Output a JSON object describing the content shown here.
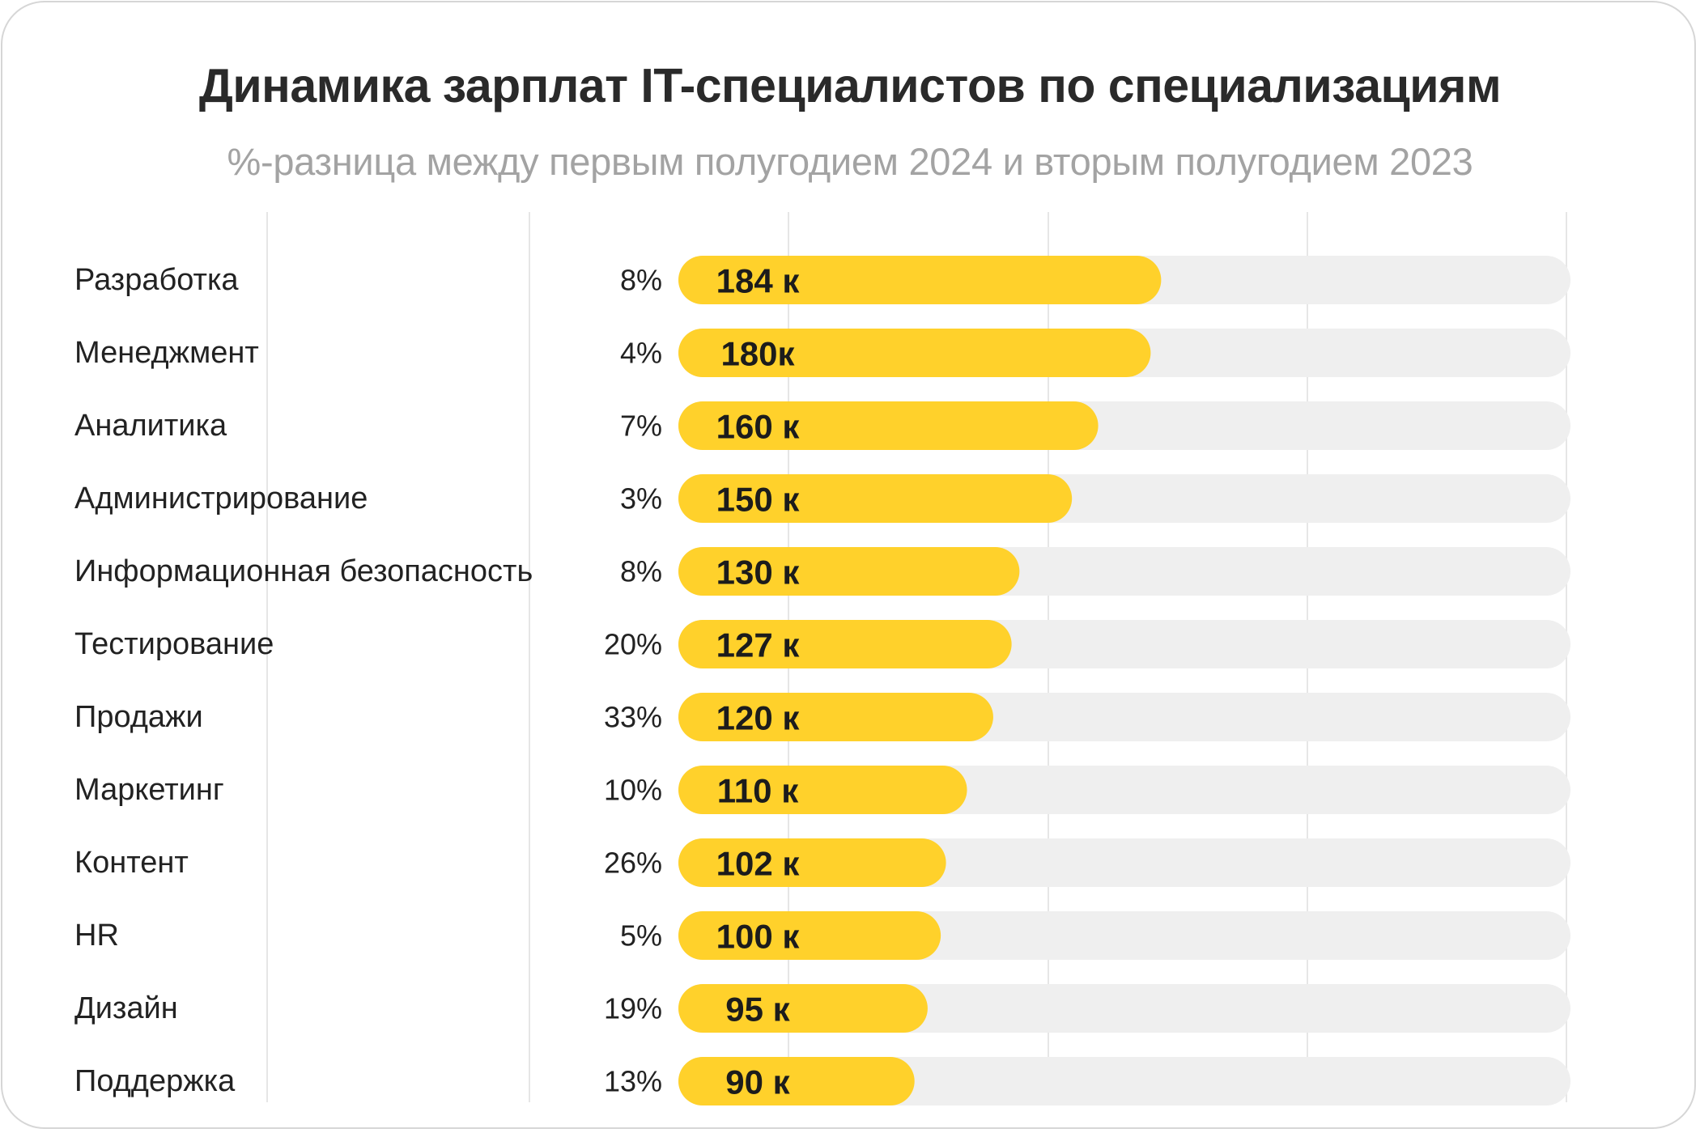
{
  "chart_data": {
    "type": "bar",
    "orientation": "horizontal",
    "title": "Динамика зарплат IT-специалистов по специализациям",
    "subtitle": "%-разница между первым полугодием 2024 и вторым полугодием 2023",
    "categories": [
      "Разработка",
      "Менеджмент",
      "Аналитика",
      "Администрирование",
      "Информационная безопасность",
      "Тестирование",
      "Продажи",
      "Маркетинг",
      "Контент",
      "HR",
      "Дизайн",
      "Поддержка"
    ],
    "values": [
      184,
      180,
      160,
      150,
      130,
      127,
      120,
      110,
      102,
      100,
      95,
      90
    ],
    "value_labels": [
      "184 к",
      "180к",
      "160 к",
      "150 к",
      "130 к",
      "127 к",
      "120 к",
      "110 к",
      "102 к",
      "100 к",
      "95 к",
      "90 к"
    ],
    "percent_change": [
      "8%",
      "4%",
      "7%",
      "3%",
      "8%",
      "20%",
      "33%",
      "10%",
      "26%",
      "5%",
      "19%",
      "13%"
    ],
    "xlim": [
      0,
      340
    ],
    "grid": true,
    "legend": "none",
    "colors": {
      "bar": "#FFD12B",
      "track": "#EFEFEF",
      "grid": "#E6E6E6",
      "text": "#222222"
    }
  }
}
